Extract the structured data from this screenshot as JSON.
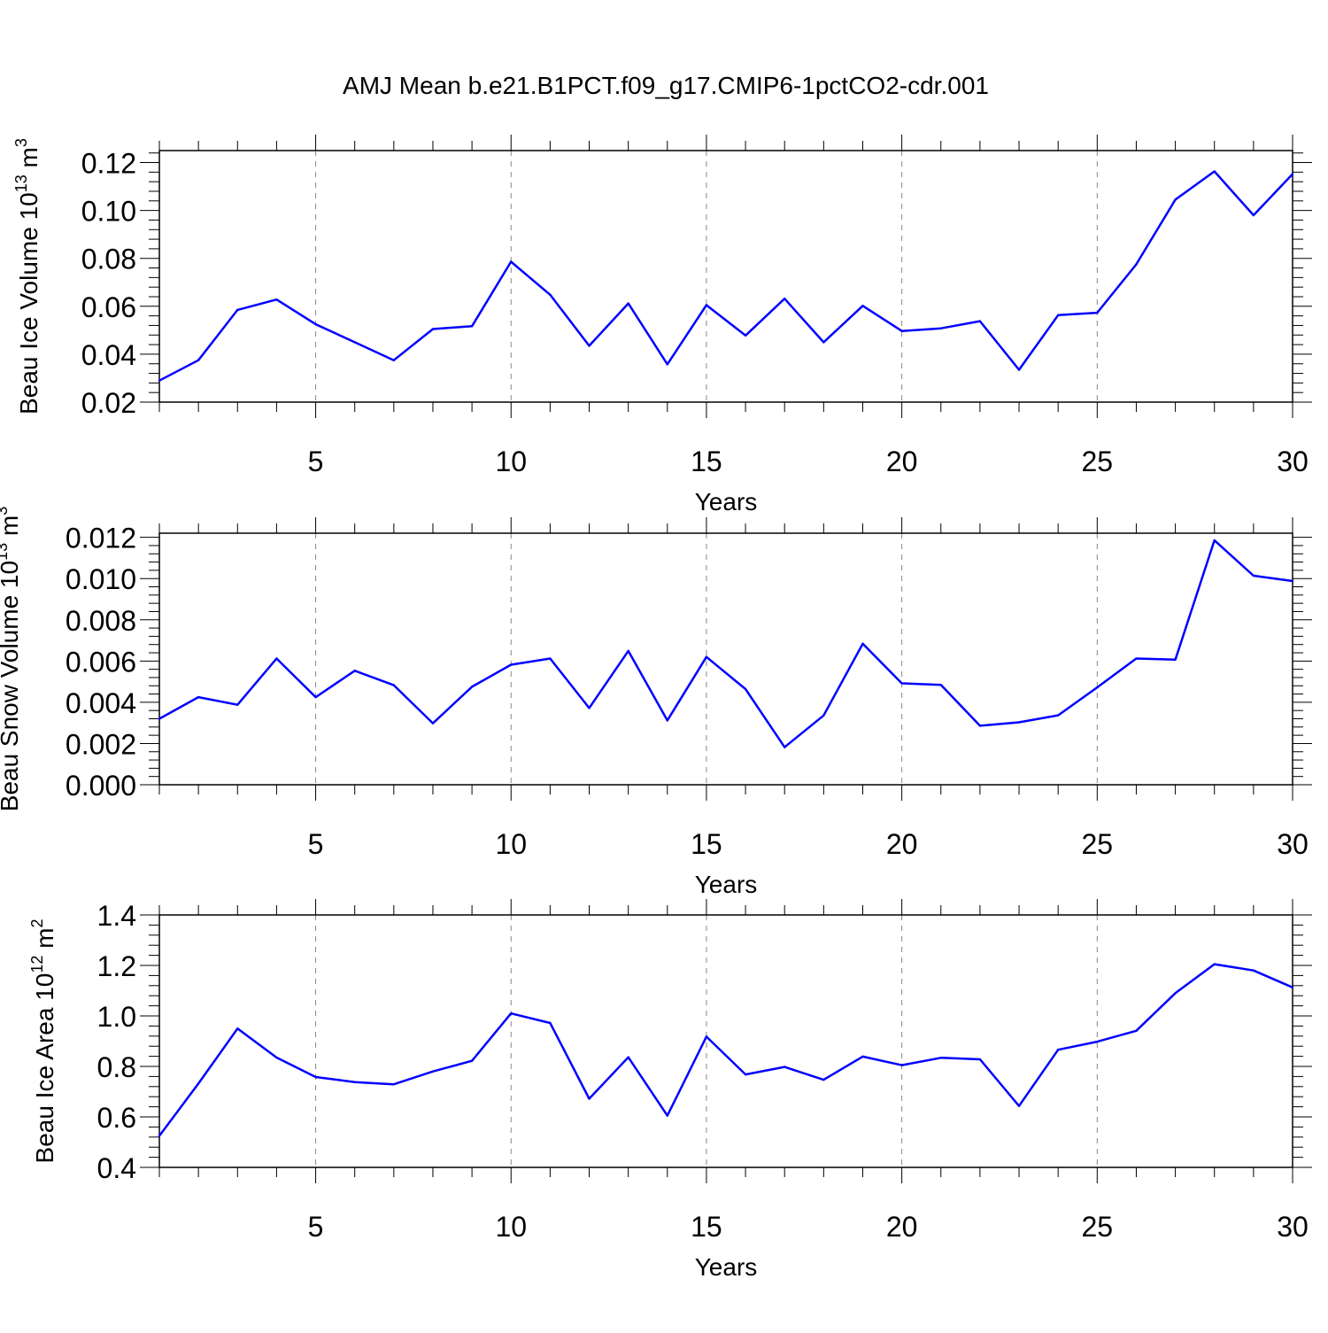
{
  "title": "AMJ Mean b.e21.B1PCT.f09_g17.CMIP6-1pctCO2-cdr.001",
  "colors": {
    "series": "#0000ff",
    "axis": "#000000",
    "grid": "#888888"
  },
  "chart_data": [
    {
      "type": "line",
      "ylabel": "Beau Ice Volume 10",
      "ylabel_sup": "13",
      "ylabel_unit": " m",
      "ylabel_unit_sup": "3",
      "xlabel": "Years",
      "xlim": [
        1,
        30
      ],
      "ylim": [
        0.02,
        0.125
      ],
      "xticks": [
        5,
        10,
        15,
        20,
        25,
        30
      ],
      "yticks": [
        0.02,
        0.04,
        0.06,
        0.08,
        0.1,
        0.12
      ],
      "ytick_labels": [
        "0.02",
        "0.04",
        "0.06",
        "0.08",
        "0.10",
        "0.12"
      ],
      "grid": "vertical-dashed",
      "x": [
        1,
        2,
        3,
        4,
        5,
        6,
        7,
        8,
        9,
        10,
        11,
        12,
        13,
        14,
        15,
        16,
        17,
        18,
        19,
        20,
        21,
        22,
        23,
        24,
        25,
        26,
        27,
        28,
        29,
        30
      ],
      "values": [
        0.029,
        0.0375,
        0.0585,
        0.0628,
        0.0525,
        0.045,
        0.0375,
        0.0505,
        0.0517,
        0.0786,
        0.0648,
        0.0435,
        0.0612,
        0.0358,
        0.0605,
        0.0478,
        0.0632,
        0.045,
        0.0602,
        0.0497,
        0.0508,
        0.0538,
        0.0335,
        0.0563,
        0.0573,
        0.0775,
        0.1045,
        0.1163,
        0.098,
        0.1152
      ]
    },
    {
      "type": "line",
      "ylabel": "Beau Snow Volume 10",
      "ylabel_sup": "13",
      "ylabel_unit": " m",
      "ylabel_unit_sup": "3",
      "xlabel": "Years",
      "xlim": [
        1,
        30
      ],
      "ylim": [
        0.0,
        0.0122
      ],
      "xticks": [
        5,
        10,
        15,
        20,
        25,
        30
      ],
      "yticks": [
        0.0,
        0.002,
        0.004,
        0.006,
        0.008,
        0.01,
        0.012
      ],
      "ytick_labels": [
        "0.000",
        "0.002",
        "0.004",
        "0.006",
        "0.008",
        "0.010",
        "0.012"
      ],
      "grid": "vertical-dashed",
      "x": [
        1,
        2,
        3,
        4,
        5,
        6,
        7,
        8,
        9,
        10,
        11,
        12,
        13,
        14,
        15,
        16,
        17,
        18,
        19,
        20,
        21,
        22,
        23,
        24,
        25,
        26,
        27,
        28,
        29,
        30
      ],
      "values": [
        0.0032,
        0.00425,
        0.00388,
        0.00612,
        0.00425,
        0.00553,
        0.00483,
        0.00298,
        0.00475,
        0.00582,
        0.00612,
        0.00372,
        0.00649,
        0.00312,
        0.0062,
        0.00464,
        0.00182,
        0.00336,
        0.00684,
        0.00492,
        0.00484,
        0.00286,
        0.00303,
        0.00337,
        0.00472,
        0.00612,
        0.00607,
        0.01185,
        0.01014,
        0.00988
      ]
    },
    {
      "type": "line",
      "ylabel": "Beau Ice Area 10",
      "ylabel_sup": "12",
      "ylabel_unit": " m",
      "ylabel_unit_sup": "2",
      "xlabel": "Years",
      "xlim": [
        1,
        30
      ],
      "ylim": [
        0.4,
        1.4
      ],
      "xticks": [
        5,
        10,
        15,
        20,
        25,
        30
      ],
      "yticks": [
        0.4,
        0.6,
        0.8,
        1.0,
        1.2,
        1.4
      ],
      "ytick_labels": [
        "0.4",
        "0.6",
        "0.8",
        "1.0",
        "1.2",
        "1.4"
      ],
      "grid": "vertical-dashed",
      "x": [
        1,
        2,
        3,
        4,
        5,
        6,
        7,
        8,
        9,
        10,
        11,
        12,
        13,
        14,
        15,
        16,
        17,
        18,
        19,
        20,
        21,
        22,
        23,
        24,
        25,
        26,
        27,
        28,
        29,
        30
      ],
      "values": [
        0.525,
        0.732,
        0.95,
        0.835,
        0.758,
        0.738,
        0.729,
        0.78,
        0.822,
        1.01,
        0.972,
        0.672,
        0.836,
        0.605,
        0.918,
        0.768,
        0.798,
        0.747,
        0.839,
        0.805,
        0.834,
        0.828,
        0.643,
        0.866,
        0.898,
        0.941,
        1.09,
        1.205,
        1.18,
        1.113
      ]
    }
  ]
}
